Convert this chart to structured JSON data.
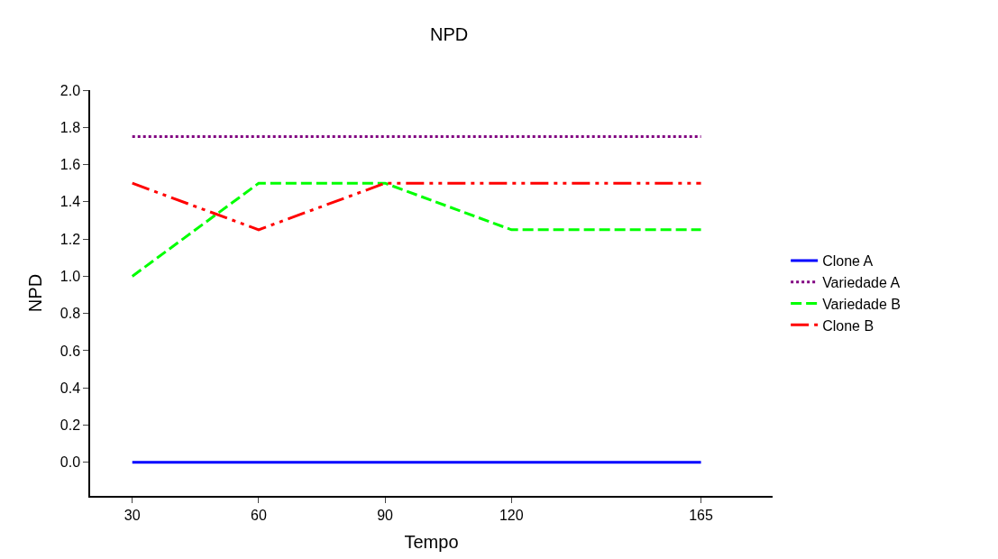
{
  "chart_data": {
    "type": "line",
    "title": "NPD",
    "xlabel": "Tempo",
    "ylabel": "NPD",
    "x": [
      30,
      60,
      90,
      120,
      165
    ],
    "series": [
      {
        "name": "Clone A",
        "color": "#0000ff",
        "values": [
          0,
          0,
          0,
          0,
          0
        ],
        "line_style": "solid"
      },
      {
        "name": "Variedade A",
        "color": "#800080",
        "values": [
          1.75,
          1.75,
          1.75,
          1.75,
          1.75
        ],
        "line_style": "dotted"
      },
      {
        "name": "Variedade B",
        "color": "#00ff00",
        "values": [
          1.0,
          1.5,
          1.5,
          1.25,
          1.25
        ],
        "line_style": "dashed"
      },
      {
        "name": "Clone B",
        "color": "#ff0000",
        "values": [
          1.5,
          1.25,
          1.5,
          1.5,
          1.5
        ],
        "line_style": "dashdotdot"
      }
    ],
    "xlim": [
      20,
      182
    ],
    "xticks": [
      30,
      60,
      90,
      120,
      165
    ],
    "ylim": [
      -0.18,
      2.0
    ],
    "yticks": [
      {
        "value": 0,
        "label": "0.0"
      },
      {
        "value": 0.2,
        "label": "0.2"
      },
      {
        "value": 0.4,
        "label": "0.4"
      },
      {
        "value": 0.6,
        "label": "0.6"
      },
      {
        "value": 0.8,
        "label": "0.8"
      },
      {
        "value": 1.0,
        "label": "1.0"
      },
      {
        "value": 1.2,
        "label": "1.2"
      },
      {
        "value": 1.4,
        "label": "1.4"
      },
      {
        "value": 1.6,
        "label": "1.6"
      },
      {
        "value": 1.8,
        "label": "1.8"
      },
      {
        "value": 2.0,
        "label": "2.0"
      }
    ],
    "legend": "right",
    "marker": "none"
  }
}
